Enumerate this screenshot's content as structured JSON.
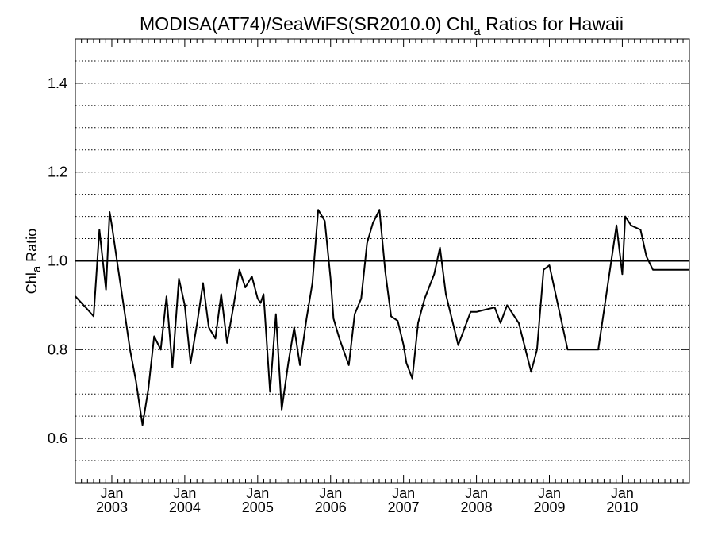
{
  "chart_data": {
    "type": "line",
    "title_main": "MODISA(AT74)/SeaWiFS(SR2010.0)  Chl",
    "title_sub": "a",
    "title_rest": " Ratios for Hawaii",
    "ylabel_main": "Chl",
    "ylabel_sub": "a",
    "ylabel_rest": " Ratio",
    "xlabel": "",
    "ylim": [
      0.5,
      1.5
    ],
    "xlim": [
      2002.5,
      2010.92
    ],
    "y_ticks": [
      {
        "value": 0.6,
        "label": "0.6"
      },
      {
        "value": 0.8,
        "label": "0.8"
      },
      {
        "value": 1.0,
        "label": "1.0"
      },
      {
        "value": 1.2,
        "label": "1.2"
      },
      {
        "value": 1.4,
        "label": "1.4"
      }
    ],
    "y_grid_step": 0.05,
    "grid": true,
    "x_ticks": [
      {
        "value": 2003.0,
        "month": "Jan",
        "year": "2003"
      },
      {
        "value": 2004.0,
        "month": "Jan",
        "year": "2004"
      },
      {
        "value": 2005.0,
        "month": "Jan",
        "year": "2005"
      },
      {
        "value": 2006.0,
        "month": "Jan",
        "year": "2006"
      },
      {
        "value": 2007.0,
        "month": "Jan",
        "year": "2007"
      },
      {
        "value": 2008.0,
        "month": "Jan",
        "year": "2008"
      },
      {
        "value": 2009.0,
        "month": "Jan",
        "year": "2009"
      },
      {
        "value": 2010.0,
        "month": "Jan",
        "year": "2010"
      }
    ],
    "reference_line": 1.0,
    "series": [
      {
        "x": [
          2002.5,
          2002.67,
          2002.75,
          2002.83,
          2002.92,
          2002.97,
          2003.0,
          2003.08,
          2003.17,
          2003.25,
          2003.33,
          2003.42,
          2003.5,
          2003.58,
          2003.67,
          2003.75,
          2003.83,
          2003.92,
          2004.0,
          2004.08,
          2004.17,
          2004.25,
          2004.33,
          2004.42,
          2004.5,
          2004.58,
          2004.67,
          2004.75,
          2004.83,
          2004.92,
          2005.0,
          2005.04,
          2005.08,
          2005.17,
          2005.25,
          2005.33,
          2005.42,
          2005.5,
          2005.58,
          2005.67,
          2005.75,
          2005.83,
          2005.92,
          2006.0,
          2006.04,
          2006.12,
          2006.25,
          2006.33,
          2006.42,
          2006.5,
          2006.58,
          2006.67,
          2006.75,
          2006.83,
          2006.92,
          2007.0,
          2007.04,
          2007.12,
          2007.2,
          2007.29,
          2007.42,
          2007.5,
          2007.58,
          2007.75,
          2007.92,
          2008.0,
          2008.12,
          2008.25,
          2008.33,
          2008.42,
          2008.58,
          2008.75,
          2008.83,
          2008.92,
          2009.0,
          2009.25,
          2009.5,
          2009.67,
          2009.92,
          2010.0,
          2010.04,
          2010.12,
          2010.25,
          2010.33,
          2010.42,
          2010.5,
          2010.58,
          2010.67,
          2010.75,
          2010.83,
          2010.92
        ],
        "y": [
          0.92,
          0.89,
          0.875,
          1.07,
          0.935,
          1.11,
          1.08,
          0.99,
          0.89,
          0.8,
          0.73,
          0.63,
          0.71,
          0.83,
          0.8,
          0.92,
          0.76,
          0.96,
          0.9,
          0.77,
          0.86,
          0.95,
          0.85,
          0.825,
          0.925,
          0.815,
          0.9,
          0.98,
          0.94,
          0.965,
          0.915,
          0.905,
          0.925,
          0.705,
          0.88,
          0.665,
          0.77,
          0.85,
          0.765,
          0.87,
          0.95,
          1.115,
          1.09,
          0.96,
          0.87,
          0.825,
          0.765,
          0.88,
          0.915,
          1.04,
          1.085,
          1.115,
          0.975,
          0.875,
          0.865,
          0.81,
          0.77,
          0.735,
          0.86,
          0.915,
          0.97,
          1.03,
          0.925,
          0.81,
          0.885,
          0.885,
          0.89,
          0.895,
          0.86,
          0.9,
          0.86,
          0.75,
          0.8,
          0.98,
          0.99,
          0.8,
          0.8,
          0.8,
          1.08,
          0.97,
          1.1,
          1.08,
          1.07,
          1.01,
          0.98,
          0.98,
          0.98,
          0.98,
          0.98,
          0.98,
          0.98
        ]
      }
    ]
  }
}
